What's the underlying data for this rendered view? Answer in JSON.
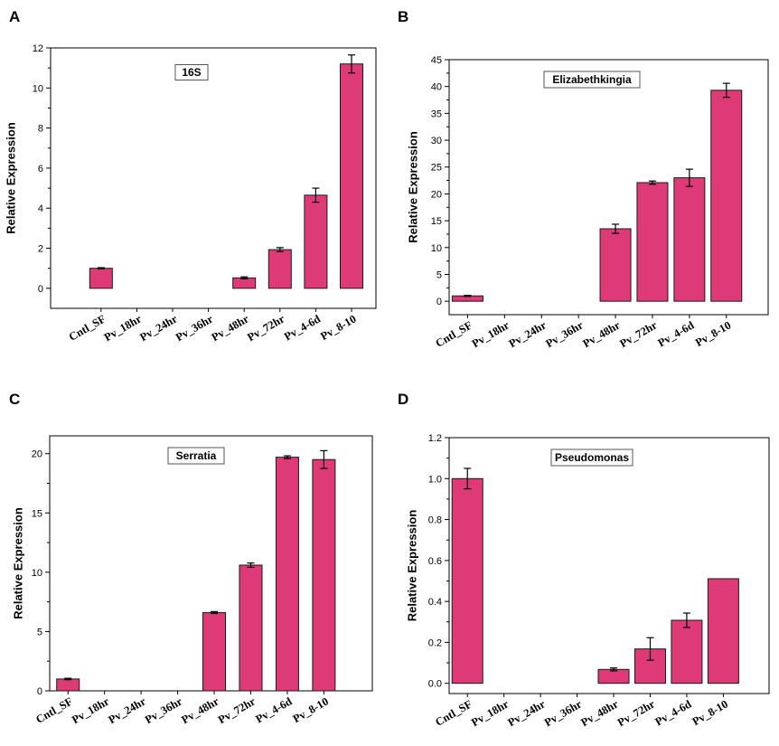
{
  "colors": {
    "bar": "#DE3A78",
    "bar_edge": "#1a1a1a",
    "axis": "#000000"
  },
  "chart_data": [
    {
      "panel": "A",
      "type": "bar",
      "title": "16S",
      "ylabel": "Relative Expression",
      "xlabel": "",
      "ylim": [
        -1,
        12
      ],
      "yticks": [
        0,
        2,
        4,
        6,
        8,
        10,
        12
      ],
      "categories": [
        "Cntl_SF",
        "Pv_18hr",
        "Pv_24hr",
        "Pv_36hr",
        "Pv_48hr",
        "Pv_72hr",
        "Pv_4-6d",
        "Pv_8-10"
      ],
      "values": [
        1.0,
        0,
        0,
        0,
        0.52,
        1.93,
        4.65,
        11.2
      ],
      "errors": [
        0.03,
        0,
        0,
        0,
        0.05,
        0.1,
        0.35,
        0.45
      ]
    },
    {
      "panel": "B",
      "type": "bar",
      "title": "Elizabethkingia",
      "ylabel": "Relative Expression",
      "xlabel": "",
      "ylim": [
        -2.5,
        45
      ],
      "yticks": [
        0,
        5,
        10,
        15,
        20,
        25,
        30,
        35,
        40,
        45
      ],
      "categories": [
        "Cntl_SF",
        "Pv_18hr",
        "Pv_24hr",
        "Pv_36hr",
        "Pv_48hr",
        "Pv_72hr",
        "Pv_4-6d",
        "Pv_8-10"
      ],
      "values": [
        1.0,
        0,
        0,
        0,
        13.5,
        22.1,
        23.0,
        39.3
      ],
      "errors": [
        0.1,
        0,
        0,
        0,
        0.85,
        0.3,
        1.6,
        1.3
      ]
    },
    {
      "panel": "C",
      "type": "bar",
      "title": "Serratia",
      "ylabel": "Relative Expression",
      "xlabel": "",
      "ylim": [
        0,
        21.5
      ],
      "yticks": [
        0,
        5,
        10,
        15,
        20
      ],
      "categories": [
        "Cntl_SF",
        "Pv_18hr",
        "Pv_24hr",
        "Pv_36hr",
        "Pv_48hr",
        "Pv_72hr",
        "Pv_4-6d",
        "Pv_8-10"
      ],
      "values": [
        1.0,
        0,
        0,
        0,
        6.6,
        10.6,
        19.7,
        19.5
      ],
      "errors": [
        0.06,
        0,
        0,
        0,
        0.08,
        0.18,
        0.12,
        0.75
      ]
    },
    {
      "panel": "D",
      "type": "bar",
      "title": "Pseudomonas",
      "ylabel": "Relative Expression",
      "xlabel": "",
      "ylim": [
        -0.05,
        1.2
      ],
      "yticks": [
        0.0,
        0.2,
        0.4,
        0.6,
        0.8,
        1.0,
        1.2
      ],
      "tick_decimals": 1,
      "categories": [
        "Cntl_SF",
        "Pv_18hr",
        "Pv_24hr",
        "Pv_36hr",
        "Pv_48hr",
        "Pv_72hr",
        "Pv_4-6d",
        "Pv_8-10"
      ],
      "values": [
        1.0,
        0,
        0,
        0,
        0.068,
        0.168,
        0.308,
        0.511
      ],
      "errors": [
        0.05,
        0,
        0,
        0,
        0.007,
        0.055,
        0.035,
        0
      ]
    }
  ]
}
